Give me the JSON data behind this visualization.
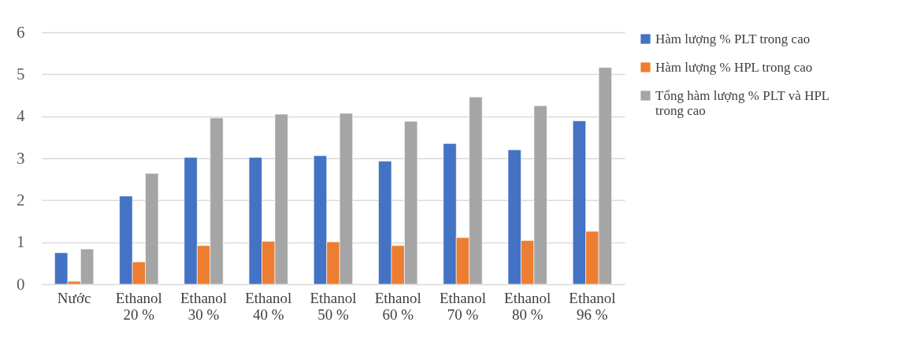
{
  "chart_data": {
    "type": "bar",
    "categories": [
      "Nước",
      "Ethanol 20 %",
      "Ethanol 30 %",
      "Ethanol 40 %",
      "Ethanol 50 %",
      "Ethanol 60 %",
      "Ethanol 70 %",
      "Ethanol 80 %",
      "Ethanol 96 %"
    ],
    "series": [
      {
        "name": "Hàm lượng % PLT trong cao",
        "color": "#4472c4",
        "values": [
          0.75,
          2.1,
          3.02,
          3.02,
          3.06,
          2.93,
          3.35,
          3.2,
          3.89
        ]
      },
      {
        "name": "Hàm lượng % HPL trong cao",
        "color": "#ed7d31",
        "values": [
          0.07,
          0.53,
          0.92,
          1.02,
          1.01,
          0.92,
          1.11,
          1.04,
          1.26
        ]
      },
      {
        "name": "Tổng hàm lượng % PLT và HPL trong cao",
        "color": "#a5a5a5",
        "values": [
          0.84,
          2.64,
          3.96,
          4.05,
          4.07,
          3.88,
          4.46,
          4.25,
          5.16
        ]
      }
    ],
    "ylim": [
      0,
      6
    ],
    "yticks": [
      0,
      1,
      2,
      3,
      4,
      5,
      6
    ],
    "grid": "y",
    "legend": "right"
  }
}
